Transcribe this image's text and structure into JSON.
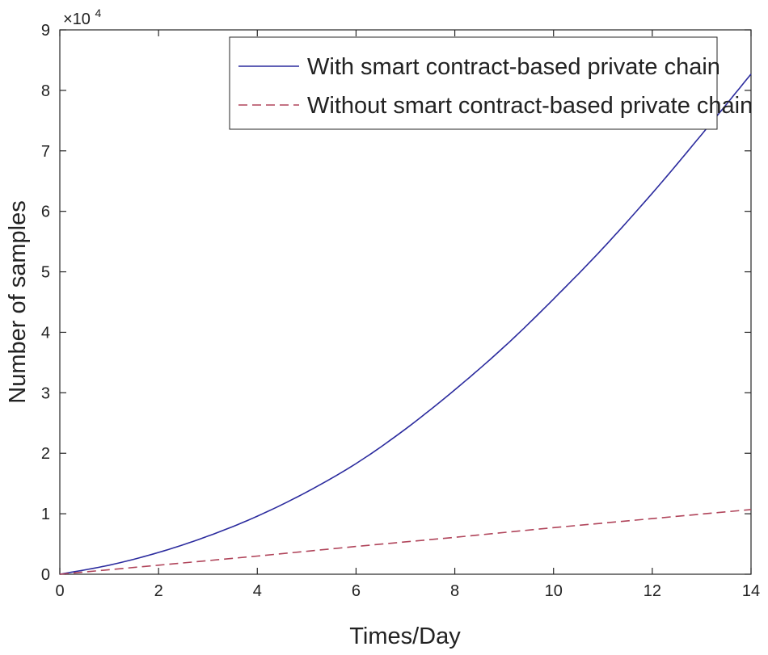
{
  "chart_data": {
    "type": "line",
    "title": "",
    "xlabel": "Times/Day",
    "ylabel": "Number of samples",
    "xlim": [
      0,
      14
    ],
    "ylim": [
      0,
      90000
    ],
    "y_multiplier_label": {
      "base": "×10",
      "exponent": "4"
    },
    "x_ticks": [
      0,
      2,
      4,
      6,
      8,
      10,
      12,
      14
    ],
    "y_ticks": [
      0,
      1,
      2,
      3,
      4,
      5,
      6,
      7,
      8,
      9
    ],
    "grid": false,
    "legend_position": "top",
    "series": [
      {
        "name": "With smart contract-based private chain",
        "color": "#2b2b9e",
        "style": "solid",
        "x": [
          0,
          1,
          2,
          3,
          4,
          5,
          6,
          7,
          8,
          9,
          10,
          11,
          12,
          13,
          14
        ],
        "values": [
          0,
          1500,
          3600,
          6300,
          9600,
          13600,
          18300,
          24000,
          30500,
          37600,
          45500,
          53900,
          63000,
          72700,
          82700
        ]
      },
      {
        "name": "Without smart contract-based private chain",
        "color": "#b0445a",
        "style": "dashed",
        "x": [
          0,
          2,
          4,
          6,
          8,
          10,
          12,
          14
        ],
        "values": [
          0,
          1500,
          3000,
          4600,
          6100,
          7700,
          9200,
          10700
        ]
      }
    ]
  }
}
